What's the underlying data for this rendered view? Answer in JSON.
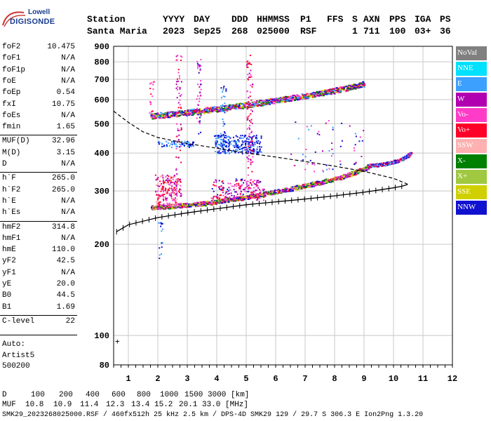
{
  "logo": {
    "line1": "Lowell",
    "line2": "DIGISONDE"
  },
  "header": {
    "labels": [
      "Station",
      "YYYY",
      "DAY",
      "DDD",
      "HHMMSS",
      "P1",
      "FFS",
      "S",
      "AXN",
      "PPS",
      "IGA",
      "PS"
    ],
    "values": [
      "Santa Maria",
      "2023",
      "Sep25",
      "268",
      "025000",
      "RSF",
      "",
      "1",
      "711",
      "100",
      "03+",
      "36"
    ]
  },
  "params": [
    {
      "name": "foF2",
      "value": "10.475"
    },
    {
      "name": "foF1",
      "value": "N/A"
    },
    {
      "name": "foF1p",
      "value": "N/A"
    },
    {
      "name": "foE",
      "value": "N/A"
    },
    {
      "name": "foEp",
      "value": "0.54"
    },
    {
      "name": "fxI",
      "value": "10.75"
    },
    {
      "name": "foEs",
      "value": "N/A"
    },
    {
      "name": "fmin",
      "value": "1.65"
    },
    {
      "name": "MUF(D)",
      "value": "32.96"
    },
    {
      "name": "M(D)",
      "value": "3.15"
    },
    {
      "name": "D",
      "value": "N/A"
    },
    {
      "name": "h`F",
      "value": "265.0"
    },
    {
      "name": "h`F2",
      "value": "265.0"
    },
    {
      "name": "h`E",
      "value": "N/A"
    },
    {
      "name": "h`Es",
      "value": "N/A"
    },
    {
      "name": "hmF2",
      "value": "314.8"
    },
    {
      "name": "hmF1",
      "value": "N/A"
    },
    {
      "name": "hmE",
      "value": "110.0"
    },
    {
      "name": "yF2",
      "value": "42.5"
    },
    {
      "name": "yF1",
      "value": "N/A"
    },
    {
      "name": "yE",
      "value": "20.0"
    },
    {
      "name": "B0",
      "value": "44.5"
    },
    {
      "name": "B1",
      "value": "1.69"
    },
    {
      "name": "C-level",
      "value": "22"
    }
  ],
  "autoscaling": {
    "line1": "Auto:",
    "line2": "Artist5",
    "line3": "500200"
  },
  "legend": [
    {
      "label": "NoVal",
      "color": "#808080"
    },
    {
      "label": "NNE",
      "color": "#00e0ff"
    },
    {
      "label": "E",
      "color": "#3ca0ff"
    },
    {
      "label": "W",
      "color": "#b000b0"
    },
    {
      "label": "Vo-",
      "color": "#ff3cc8"
    },
    {
      "label": "Vo+",
      "color": "#ff0028"
    },
    {
      "label": "SSW",
      "color": "#ffb0b0"
    },
    {
      "label": "X-",
      "color": "#008000"
    },
    {
      "label": "X+",
      "color": "#a0c840"
    },
    {
      "label": "SSE",
      "color": "#d0d000"
    },
    {
      "label": "NNW",
      "color": "#1010d0"
    }
  ],
  "footer": {
    "d_label": "D",
    "d_values": [
      "100",
      "200",
      "400",
      "600",
      "800",
      "1000",
      "1500",
      "3000",
      "[km]"
    ],
    "muf_label": "MUF",
    "muf_values": [
      "10.8",
      "10.9",
      "11.4",
      "12.3",
      "13.4",
      "15.2",
      "20.1",
      "33.0",
      "[MHz]"
    ],
    "info": "SMK29_2023268025000.RSF / 460fx512h 25 kHz 2.5 km / DPS-4D SMK29 129 / 29.7 S 306.3 E Ion2Png 1.3.20"
  },
  "chart_data": {
    "type": "scatter",
    "title": "",
    "xlabel": "",
    "ylabel": "",
    "xlim": [
      0.5,
      12
    ],
    "ylim": [
      80,
      900
    ],
    "y_scale": "log",
    "xticks": [
      1,
      2,
      3,
      4,
      5,
      6,
      7,
      8,
      9,
      10,
      11,
      12
    ],
    "yticks": [
      80,
      100,
      200,
      300,
      400,
      500,
      600,
      700,
      800,
      900
    ],
    "grid": true,
    "traces": [
      {
        "series": "O-trace F2",
        "color": "#ff0028",
        "x": [
          1.75,
          2.0,
          2.5,
          3.0,
          3.5,
          4.0,
          4.5,
          5.0,
          5.5,
          6.0,
          6.5,
          7.0,
          7.5,
          8.0,
          8.5,
          9.0,
          9.2
        ],
        "y": [
          265,
          266,
          268,
          270,
          273,
          277,
          282,
          287,
          293,
          299,
          306,
          313,
          321,
          330,
          341,
          356,
          365
        ]
      },
      {
        "series": "O-trace F2 upper",
        "color": "#ff0028",
        "x": [
          9.2,
          9.6,
          10.0,
          10.2,
          10.4,
          10.5,
          10.6
        ],
        "y": [
          365,
          368,
          375,
          380,
          388,
          395,
          400
        ]
      },
      {
        "series": "2nd hop",
        "color": "#ff0028",
        "x": [
          1.75,
          2.0,
          3.0,
          4.0,
          5.0,
          6.0,
          7.0,
          8.0,
          8.5,
          9.0
        ],
        "y": [
          530,
          534,
          546,
          561,
          578,
          598,
          620,
          645,
          660,
          680
        ]
      },
      {
        "series": "Profile",
        "color": "#000000",
        "x": [
          0.6,
          1.0,
          2.0,
          3.0,
          4.0,
          5.0,
          6.0,
          7.0,
          8.0,
          9.0,
          9.5,
          10.0,
          10.3,
          10.475
        ],
        "y": [
          220,
          232,
          245,
          254,
          262,
          270,
          276,
          282,
          289,
          297,
          302,
          307,
          311,
          314.8
        ]
      },
      {
        "series": "Model",
        "color": "#000000",
        "x": [
          0.5,
          1.0,
          1.5,
          2.0,
          3.0,
          4.0,
          5.0,
          6.0,
          7.0,
          8.0,
          9.0,
          10.0,
          10.4,
          10.5
        ],
        "y": [
          550,
          505,
          470,
          450,
          430,
          415,
          400,
          388,
          375,
          362,
          348,
          330,
          318,
          315
        ]
      }
    ]
  }
}
